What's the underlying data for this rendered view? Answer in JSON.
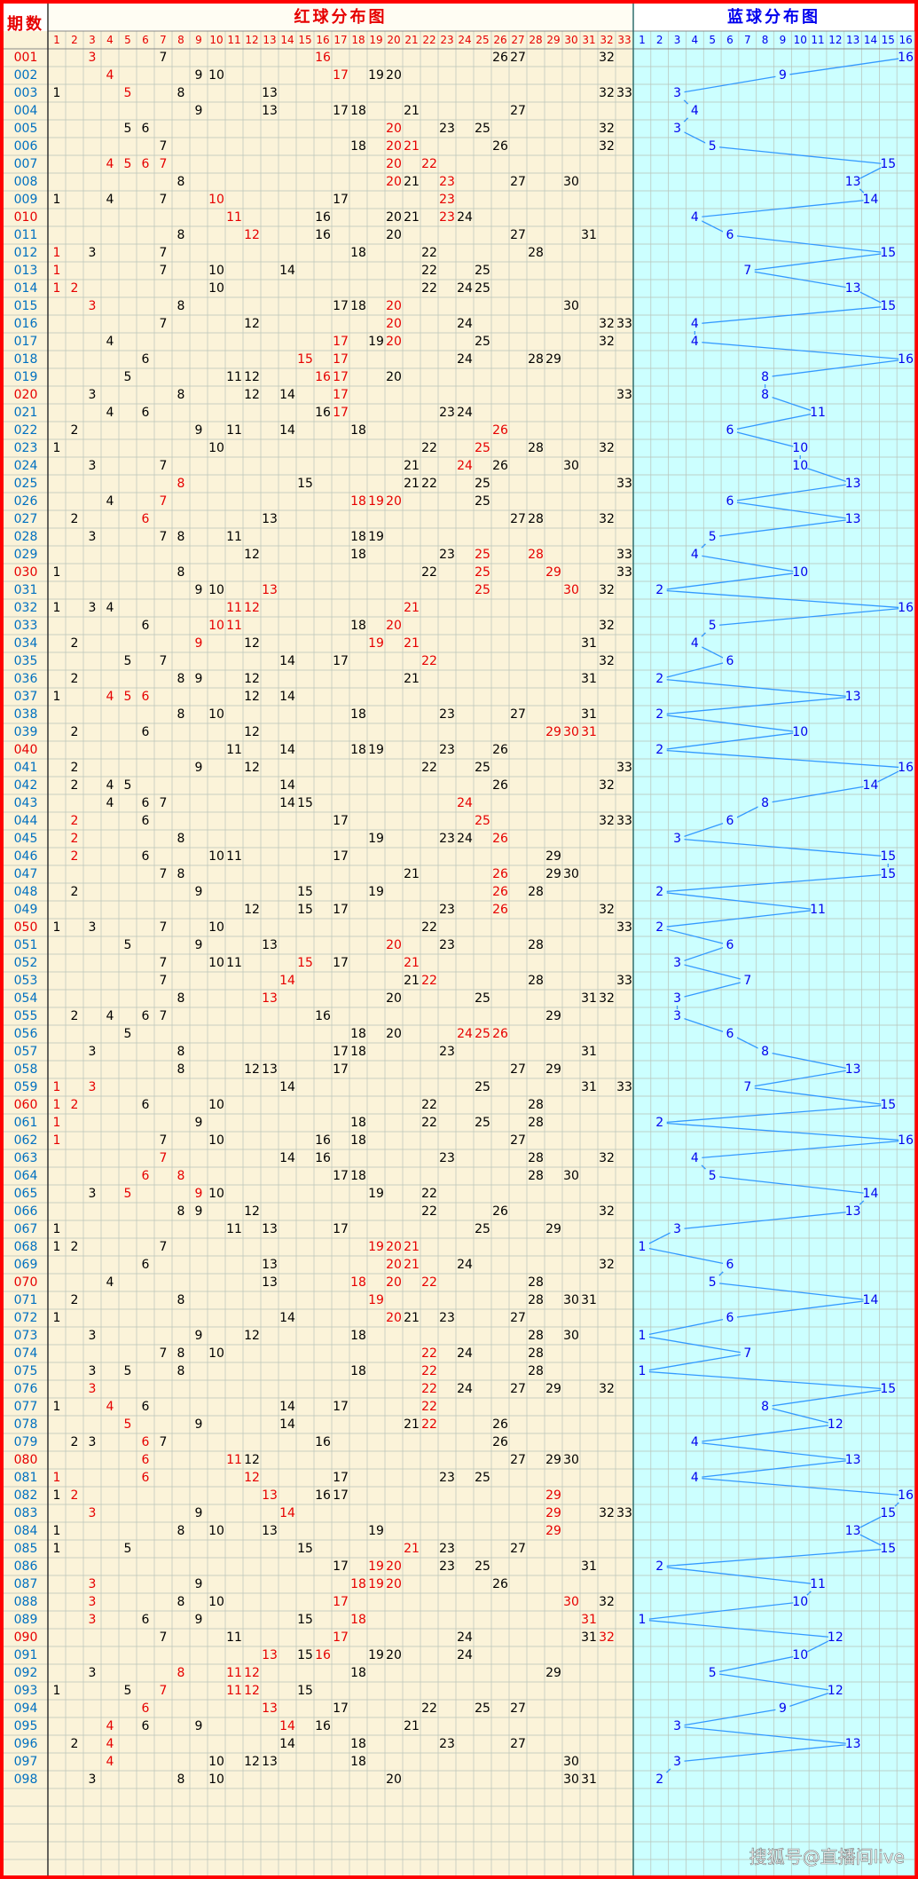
{
  "header": {
    "period_label": "期数",
    "red_title": "红球分布图",
    "blue_title": "蓝球分布图",
    "red_columns": [
      1,
      2,
      3,
      4,
      5,
      6,
      7,
      8,
      9,
      10,
      11,
      12,
      13,
      14,
      15,
      16,
      17,
      18,
      19,
      20,
      21,
      22,
      23,
      24,
      25,
      26,
      27,
      28,
      29,
      30,
      31,
      32,
      33
    ],
    "blue_columns": [
      1,
      2,
      3,
      4,
      5,
      6,
      7,
      8,
      9,
      10,
      11,
      12,
      13,
      14,
      15,
      16
    ]
  },
  "colors": {
    "highlight": "#e60000",
    "normal": "#000000",
    "period": "#0070c0",
    "period_mark": "#e60000",
    "blue": "#0000ee",
    "line": "#3399ff",
    "red_bg": "#fbf3d9",
    "blue_bg": "#ccffff",
    "border": "#ff0000",
    "grid": "#b9c3b9",
    "divider": "#2f6f6f"
  },
  "watermark": "搜狐号@直播间live",
  "rows": [
    [
      "001",
      [
        3,
        7,
        16,
        26,
        27,
        32
      ],
      16,
      [
        3,
        16
      ]
    ],
    [
      "002",
      [
        4,
        9,
        10,
        17,
        19,
        20
      ],
      9,
      [
        4,
        17
      ]
    ],
    [
      "003",
      [
        1,
        5,
        8,
        13,
        32,
        33
      ],
      3,
      [
        5
      ]
    ],
    [
      "004",
      [
        9,
        13,
        17,
        18,
        21,
        27
      ],
      4
    ],
    [
      "005",
      [
        5,
        6,
        20,
        23,
        25,
        32
      ],
      3,
      [
        20
      ]
    ],
    [
      "006",
      [
        7,
        18,
        20,
        21,
        26,
        32
      ],
      5,
      [
        20,
        21
      ]
    ],
    [
      "007",
      [
        4,
        5,
        6,
        7,
        20,
        22
      ],
      15,
      [
        4,
        5,
        6,
        7,
        20,
        22
      ]
    ],
    [
      "008",
      [
        8,
        20,
        21,
        23,
        27,
        30
      ],
      13,
      [
        20,
        23
      ]
    ],
    [
      "009",
      [
        1,
        4,
        7,
        10,
        17,
        23
      ],
      14,
      [
        10,
        23
      ]
    ],
    [
      "010",
      [
        11,
        16,
        20,
        21,
        23,
        24
      ],
      4,
      [
        11,
        23
      ]
    ],
    [
      "011",
      [
        8,
        12,
        16,
        20,
        27,
        31
      ],
      6,
      [
        12
      ]
    ],
    [
      "012",
      [
        1,
        3,
        7,
        18,
        22,
        28
      ],
      15,
      [
        1
      ]
    ],
    [
      "013",
      [
        1,
        7,
        10,
        14,
        22,
        25
      ],
      7,
      [
        1
      ]
    ],
    [
      "014",
      [
        1,
        2,
        10,
        22,
        24,
        25
      ],
      13,
      [
        1,
        2
      ]
    ],
    [
      "015",
      [
        3,
        8,
        17,
        18,
        20,
        30
      ],
      15,
      [
        3,
        20
      ]
    ],
    [
      "016",
      [
        7,
        12,
        20,
        24,
        32,
        33
      ],
      4,
      [
        20
      ]
    ],
    [
      "017",
      [
        4,
        17,
        19,
        20,
        25,
        32
      ],
      4,
      [
        17,
        20
      ]
    ],
    [
      "018",
      [
        6,
        15,
        17,
        24,
        28,
        29
      ],
      16,
      [
        15,
        17
      ]
    ],
    [
      "019",
      [
        5,
        11,
        12,
        16,
        17,
        20
      ],
      8,
      [
        16,
        17
      ]
    ],
    [
      "020",
      [
        3,
        8,
        12,
        14,
        17,
        33
      ],
      8,
      [
        17
      ]
    ],
    [
      "021",
      [
        4,
        6,
        16,
        17,
        23,
        24
      ],
      11,
      [
        17
      ]
    ],
    [
      "022",
      [
        2,
        9,
        11,
        14,
        18,
        26
      ],
      6,
      [
        26
      ]
    ],
    [
      "023",
      [
        1,
        10,
        22,
        25,
        28,
        32
      ],
      10,
      [
        25
      ]
    ],
    [
      "024",
      [
        3,
        7,
        21,
        24,
        26,
        30
      ],
      10,
      [
        24
      ]
    ],
    [
      "025",
      [
        8,
        15,
        21,
        22,
        25,
        33
      ],
      13,
      [
        8
      ]
    ],
    [
      "026",
      [
        4,
        7,
        18,
        19,
        20,
        25
      ],
      6,
      [
        7,
        18,
        19,
        20
      ]
    ],
    [
      "027",
      [
        2,
        6,
        13,
        27,
        28,
        32
      ],
      13,
      [
        6
      ]
    ],
    [
      "028",
      [
        3,
        7,
        8,
        11,
        18,
        19
      ],
      5
    ],
    [
      "029",
      [
        12,
        18,
        23,
        25,
        28,
        33
      ],
      4,
      [
        25,
        28
      ]
    ],
    [
      "030",
      [
        1,
        8,
        22,
        25,
        29,
        33
      ],
      10,
      [
        25,
        29
      ]
    ],
    [
      "031",
      [
        9,
        10,
        13,
        25,
        30,
        32
      ],
      2,
      [
        13,
        25,
        30
      ]
    ],
    [
      "032",
      [
        1,
        3,
        4,
        11,
        12,
        21
      ],
      16,
      [
        11,
        12,
        21
      ]
    ],
    [
      "033",
      [
        6,
        10,
        11,
        18,
        20,
        32
      ],
      5,
      [
        10,
        11,
        20
      ]
    ],
    [
      "034",
      [
        2,
        9,
        12,
        19,
        21,
        31
      ],
      4,
      [
        9,
        19,
        21
      ]
    ],
    [
      "035",
      [
        5,
        7,
        14,
        17,
        22,
        32
      ],
      6,
      [
        22
      ]
    ],
    [
      "036",
      [
        2,
        8,
        9,
        12,
        21,
        31
      ],
      2
    ],
    [
      "037",
      [
        1,
        4,
        5,
        6,
        12,
        14
      ],
      13,
      [
        4,
        5,
        6
      ]
    ],
    [
      "038",
      [
        8,
        10,
        18,
        23,
        27,
        31
      ],
      2
    ],
    [
      "039",
      [
        2,
        6,
        12,
        29,
        30,
        31
      ],
      10,
      [
        29,
        30,
        31
      ]
    ],
    [
      "040",
      [
        11,
        14,
        18,
        19,
        23,
        26
      ],
      2
    ],
    [
      "041",
      [
        2,
        9,
        12,
        22,
        25,
        33
      ],
      16
    ],
    [
      "042",
      [
        2,
        4,
        5,
        14,
        26,
        32
      ],
      14
    ],
    [
      "043",
      [
        4,
        6,
        7,
        14,
        15,
        24
      ],
      8,
      [
        24
      ]
    ],
    [
      "044",
      [
        2,
        6,
        17,
        25,
        32,
        33
      ],
      6,
      [
        2,
        25
      ]
    ],
    [
      "045",
      [
        2,
        8,
        19,
        23,
        24,
        26
      ],
      3,
      [
        2,
        26
      ]
    ],
    [
      "046",
      [
        2,
        6,
        10,
        11,
        17,
        29
      ],
      15,
      [
        2
      ]
    ],
    [
      "047",
      [
        7,
        8,
        21,
        26,
        29,
        30
      ],
      15,
      [
        26
      ]
    ],
    [
      "048",
      [
        2,
        9,
        15,
        19,
        26,
        28
      ],
      2,
      [
        26
      ]
    ],
    [
      "049",
      [
        12,
        15,
        17,
        23,
        26,
        32
      ],
      11,
      [
        26
      ]
    ],
    [
      "050",
      [
        1,
        3,
        7,
        10,
        22,
        33
      ],
      2
    ],
    [
      "051",
      [
        5,
        9,
        13,
        20,
        23,
        28
      ],
      6,
      [
        20
      ]
    ],
    [
      "052",
      [
        7,
        10,
        11,
        15,
        17,
        21
      ],
      3,
      [
        15,
        21
      ]
    ],
    [
      "053",
      [
        7,
        14,
        21,
        22,
        28,
        33
      ],
      7,
      [
        14,
        22
      ]
    ],
    [
      "054",
      [
        8,
        13,
        20,
        25,
        31,
        32
      ],
      3,
      [
        13
      ]
    ],
    [
      "055",
      [
        2,
        4,
        6,
        7,
        16,
        29
      ],
      3
    ],
    [
      "056",
      [
        5,
        18,
        20,
        24,
        25,
        26
      ],
      6,
      [
        24,
        25,
        26
      ]
    ],
    [
      "057",
      [
        3,
        8,
        17,
        18,
        23,
        31
      ],
      8
    ],
    [
      "058",
      [
        8,
        12,
        13,
        17,
        27,
        29
      ],
      13
    ],
    [
      "059",
      [
        1,
        3,
        14,
        25,
        31,
        33
      ],
      7,
      [
        1,
        3
      ]
    ],
    [
      "060",
      [
        1,
        2,
        6,
        10,
        22,
        28
      ],
      15,
      [
        1,
        2
      ]
    ],
    [
      "061",
      [
        1,
        9,
        18,
        22,
        25,
        28
      ],
      2,
      [
        1
      ]
    ],
    [
      "062",
      [
        1,
        7,
        10,
        16,
        18,
        27
      ],
      16,
      [
        1
      ]
    ],
    [
      "063",
      [
        7,
        14,
        16,
        23,
        28,
        32
      ],
      4,
      [
        7
      ]
    ],
    [
      "064",
      [
        6,
        8,
        17,
        18,
        28,
        30
      ],
      5,
      [
        6,
        8
      ]
    ],
    [
      "065",
      [
        3,
        5,
        9,
        10,
        19,
        22
      ],
      14,
      [
        5,
        9
      ]
    ],
    [
      "066",
      [
        8,
        9,
        12,
        22,
        26,
        32
      ],
      13
    ],
    [
      "067",
      [
        1,
        11,
        13,
        17,
        25,
        29
      ],
      3
    ],
    [
      "068",
      [
        1,
        2,
        7,
        19,
        20,
        21
      ],
      1,
      [
        19,
        20,
        21
      ]
    ],
    [
      "069",
      [
        6,
        13,
        20,
        21,
        24,
        32
      ],
      6,
      [
        20,
        21
      ]
    ],
    [
      "070",
      [
        4,
        13,
        18,
        20,
        22,
        28
      ],
      5,
      [
        18,
        20,
        22
      ]
    ],
    [
      "071",
      [
        2,
        8,
        19,
        28,
        30,
        31
      ],
      14,
      [
        19
      ]
    ],
    [
      "072",
      [
        1,
        14,
        20,
        21,
        23,
        27
      ],
      6,
      [
        20
      ]
    ],
    [
      "073",
      [
        3,
        9,
        12,
        18,
        28,
        30
      ],
      1
    ],
    [
      "074",
      [
        7,
        8,
        10,
        22,
        24,
        28
      ],
      7,
      [
        22
      ]
    ],
    [
      "075",
      [
        3,
        5,
        8,
        18,
        22,
        28
      ],
      1,
      [
        22
      ]
    ],
    [
      "076",
      [
        3,
        22,
        24,
        27,
        29,
        32
      ],
      15,
      [
        3,
        22
      ]
    ],
    [
      "077",
      [
        1,
        4,
        6,
        14,
        17,
        22
      ],
      8,
      [
        4,
        22
      ]
    ],
    [
      "078",
      [
        5,
        9,
        14,
        21,
        22,
        26
      ],
      12,
      [
        5,
        22
      ]
    ],
    [
      "079",
      [
        2,
        3,
        6,
        7,
        16,
        26
      ],
      4,
      [
        6
      ]
    ],
    [
      "080",
      [
        6,
        11,
        12,
        27,
        29,
        30
      ],
      13,
      [
        6,
        11
      ]
    ],
    [
      "081",
      [
        1,
        6,
        12,
        17,
        23,
        25
      ],
      4,
      [
        1,
        6,
        12
      ]
    ],
    [
      "082",
      [
        1,
        2,
        13,
        16,
        17,
        29
      ],
      16,
      [
        2,
        13,
        29
      ]
    ],
    [
      "083",
      [
        3,
        9,
        14,
        29,
        32,
        33
      ],
      15,
      [
        3,
        14,
        29
      ]
    ],
    [
      "084",
      [
        1,
        8,
        10,
        13,
        19,
        29
      ],
      13,
      [
        29
      ]
    ],
    [
      "085",
      [
        1,
        5,
        15,
        21,
        23,
        27
      ],
      15,
      [
        21
      ]
    ],
    [
      "086",
      [
        17,
        19,
        20,
        23,
        25,
        31
      ],
      2,
      [
        19,
        20
      ]
    ],
    [
      "087",
      [
        3,
        9,
        18,
        19,
        20,
        26
      ],
      11,
      [
        3,
        18,
        19,
        20
      ]
    ],
    [
      "088",
      [
        3,
        8,
        10,
        17,
        30,
        32
      ],
      10,
      [
        3,
        17,
        30
      ]
    ],
    [
      "089",
      [
        3,
        6,
        9,
        15,
        18,
        31
      ],
      1,
      [
        3,
        18,
        31
      ]
    ],
    [
      "090",
      [
        7,
        11,
        17,
        24,
        31,
        32
      ],
      12,
      [
        17,
        32
      ]
    ],
    [
      "091",
      [
        13,
        15,
        16,
        19,
        20,
        24
      ],
      10,
      [
        13,
        16
      ]
    ],
    [
      "092",
      [
        3,
        8,
        11,
        12,
        18,
        29
      ],
      5,
      [
        8,
        11,
        12
      ]
    ],
    [
      "093",
      [
        1,
        5,
        7,
        11,
        12,
        15
      ],
      12,
      [
        7,
        11,
        12
      ]
    ],
    [
      "094",
      [
        6,
        13,
        17,
        22,
        25,
        27
      ],
      9,
      [
        6,
        13
      ]
    ],
    [
      "095",
      [
        4,
        6,
        9,
        14,
        16,
        21
      ],
      3,
      [
        4,
        14
      ]
    ],
    [
      "096",
      [
        2,
        4,
        14,
        18,
        23,
        27
      ],
      13,
      [
        4
      ]
    ],
    [
      "097",
      [
        4,
        10,
        12,
        13,
        18,
        30
      ],
      3,
      [
        4
      ]
    ],
    [
      "098",
      [
        3,
        8,
        10,
        20,
        30,
        31
      ],
      2
    ]
  ]
}
